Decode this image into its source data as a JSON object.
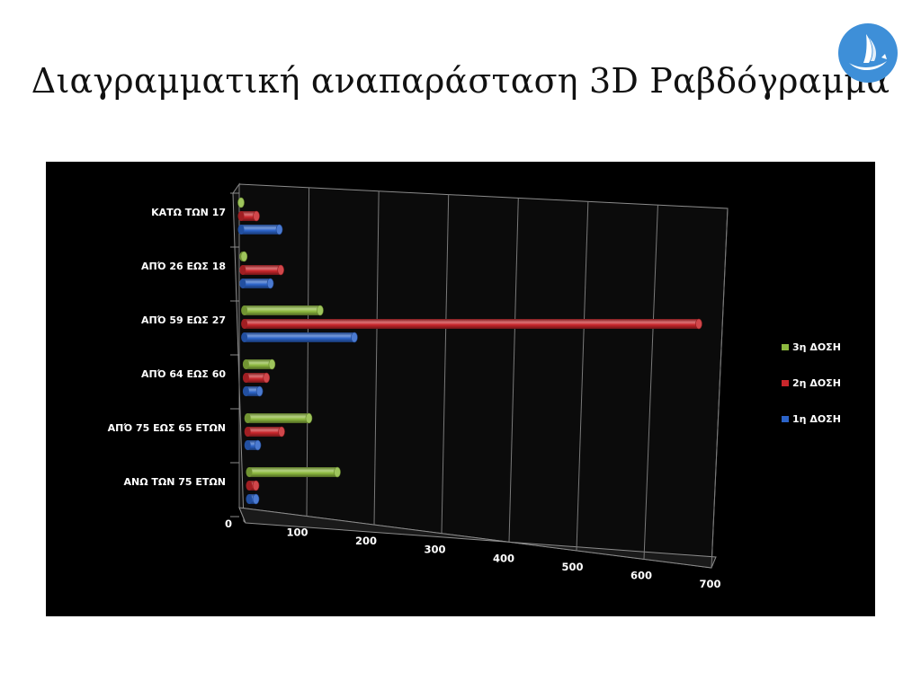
{
  "slide": {
    "title": "Διαγραμματική αναπαράσταση  3D Ραβδόγραμμα",
    "logo_icon": "sailboat-logo-icon"
  },
  "colors": {
    "chart_background": "#000000",
    "3h": "#8db93f",
    "2h": "#c8262b",
    "1h": "#2b63c8",
    "logo": "#3e8fd8"
  },
  "chart_data": {
    "type": "bar",
    "orientation": "horizontal",
    "three_d": true,
    "categories": [
      "ΚΑΤΩ ΤΩΝ 17",
      "ΑΠΌ 26 ΕΩΣ 18",
      "ΑΠΌ 59 ΕΩΣ 27",
      "ΑΠΌ 64 ΕΩΣ 60",
      "ΑΠΌ 75 ΕΩΣ 65 ΕΤΩΝ",
      "ΑΝΩ ΤΩΝ 75 ΕΤΩΝ"
    ],
    "series": [
      {
        "name": "3η ΔΟΣΗ",
        "color_key": "3h",
        "values": [
          0,
          2,
          110,
          38,
          90,
          130
        ]
      },
      {
        "name": "2η ΔΟΣΗ",
        "color_key": "2h",
        "values": [
          22,
          55,
          660,
          30,
          50,
          10
        ]
      },
      {
        "name": "1η ΔΟΣΗ",
        "color_key": "1h",
        "values": [
          55,
          40,
          160,
          20,
          15,
          10
        ]
      }
    ],
    "xlim": [
      0,
      700
    ],
    "xticks": [
      0,
      100,
      200,
      300,
      400,
      500,
      600,
      700
    ],
    "grid": true,
    "legend": {
      "position": "right",
      "order": [
        "3η ΔΟΣΗ",
        "2η ΔΟΣΗ",
        "1η ΔΟΣΗ"
      ]
    }
  }
}
